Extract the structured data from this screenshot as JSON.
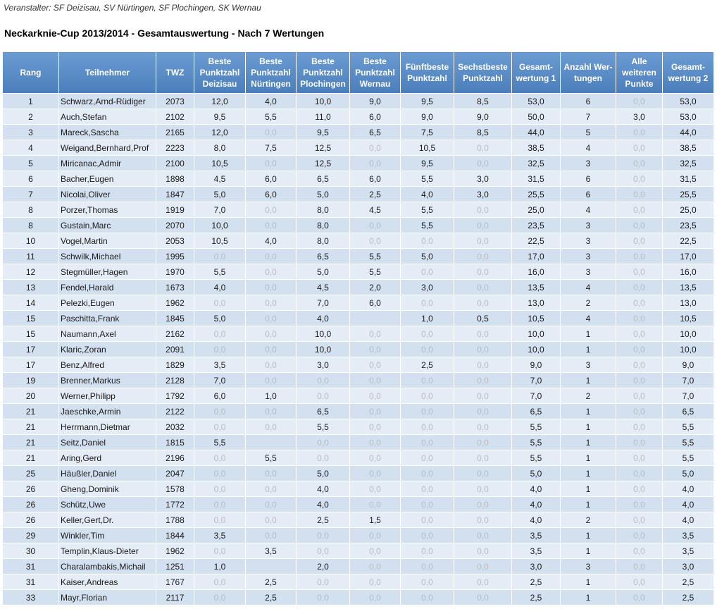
{
  "header": {
    "organizer": "Veranstalter: SF Deizisau, SV Nürtingen, SF Plochingen, SK Wernau",
    "title": "Neckarknie-Cup 2013/2014 - Gesamtauswertung - Nach 7 Wertungen"
  },
  "table": {
    "columns": [
      "Rang",
      "Teilnehmer",
      "TWZ",
      "Beste\nPunktzahl\nDeizisau",
      "Beste\nPunktzahl\nNürtingen",
      "Beste\nPunktzahl\nPlochingen",
      "Beste\nPunktzahl\nWernau",
      "Fünftbeste\nPunktzahl",
      "Sechstbeste\nPunktzahl",
      "Gesamt-\nwertung 1",
      "Anzahl Wer-\ntungen",
      "Alle\nweiteren\nPunkte",
      "Gesamt-\nwertung 2"
    ],
    "rows": [
      [
        "1",
        "Schwarz,Arnd-Rüdiger",
        "2073",
        "12,0",
        "4,0",
        "10,0",
        "9,0",
        "9,5",
        "8,5",
        "53,0",
        "6",
        "0,0",
        "53,0"
      ],
      [
        "2",
        "Auch,Stefan",
        "2102",
        "9,5",
        "5,5",
        "11,0",
        "6,0",
        "9,0",
        "9,0",
        "50,0",
        "7",
        "3,0",
        "53,0"
      ],
      [
        "3",
        "Mareck,Sascha",
        "2165",
        "12,0",
        "0,0",
        "9,5",
        "6,5",
        "7,5",
        "8,5",
        "44,0",
        "5",
        "0,0",
        "44,0"
      ],
      [
        "4",
        "Weigand,Bernhard,Prof",
        "2223",
        "8,0",
        "7,5",
        "12,5",
        "0,0",
        "10,5",
        "0,0",
        "38,5",
        "4",
        "0,0",
        "38,5"
      ],
      [
        "5",
        "Miricanac,Admir",
        "2100",
        "10,5",
        "0,0",
        "12,5",
        "0,0",
        "9,5",
        "0,0",
        "32,5",
        "3",
        "0,0",
        "32,5"
      ],
      [
        "6",
        "Bacher,Eugen",
        "1898",
        "4,5",
        "6,0",
        "6,5",
        "6,0",
        "5,5",
        "3,0",
        "31,5",
        "6",
        "0,0",
        "31,5"
      ],
      [
        "7",
        "Nicolai,Oliver",
        "1847",
        "5,0",
        "6,0",
        "5,0",
        "2,5",
        "4,0",
        "3,0",
        "25,5",
        "6",
        "0,0",
        "25,5"
      ],
      [
        "8",
        "Porzer,Thomas",
        "1919",
        "7,0",
        "0,0",
        "8,0",
        "4,5",
        "5,5",
        "0,0",
        "25,0",
        "4",
        "0,0",
        "25,0"
      ],
      [
        "8",
        "Gustain,Marc",
        "2070",
        "10,0",
        "0,0",
        "8,0",
        "0,0",
        "5,5",
        "0,0",
        "23,5",
        "3",
        "0,0",
        "23,5"
      ],
      [
        "10",
        "Vogel,Martin",
        "2053",
        "10,5",
        "4,0",
        "8,0",
        "0,0",
        "0,0",
        "0,0",
        "22,5",
        "3",
        "0,0",
        "22,5"
      ],
      [
        "11",
        "Schwilk,Michael",
        "1995",
        "0,0",
        "0,0",
        "6,5",
        "5,5",
        "5,0",
        "0,0",
        "17,0",
        "3",
        "0,0",
        "17,0"
      ],
      [
        "12",
        "Stegmüller,Hagen",
        "1970",
        "5,5",
        "0,0",
        "5,0",
        "5,5",
        "0,0",
        "0,0",
        "16,0",
        "3",
        "0,0",
        "16,0"
      ],
      [
        "13",
        "Fendel,Harald",
        "1673",
        "4,0",
        "0,0",
        "4,5",
        "2,0",
        "3,0",
        "0,0",
        "13,5",
        "4",
        "0,0",
        "13,5"
      ],
      [
        "14",
        "Pelezki,Eugen",
        "1962",
        "0,0",
        "0,0",
        "7,0",
        "6,0",
        "0,0",
        "0,0",
        "13,0",
        "2",
        "0,0",
        "13,0"
      ],
      [
        "15",
        "Paschitta,Frank",
        "1845",
        "5,0",
        "0,0",
        "4,0",
        null,
        "1,0",
        "0,5",
        "10,5",
        "4",
        "0,0",
        "10,5"
      ],
      [
        "15",
        "Naumann,Axel",
        "2162",
        "0,0",
        "0,0",
        "10,0",
        "0,0",
        "0,0",
        "0,0",
        "10,0",
        "1",
        "0,0",
        "10,0"
      ],
      [
        "17",
        "Klaric,Zoran",
        "2091",
        "0,0",
        "0,0",
        "10,0",
        "0,0",
        "0,0",
        "0,0",
        "10,0",
        "1",
        "0,0",
        "10,0"
      ],
      [
        "17",
        "Benz,Alfred",
        "1829",
        "3,5",
        "0,0",
        "3,0",
        "0,0",
        "2,5",
        "0,0",
        "9,0",
        "3",
        "0,0",
        "9,0"
      ],
      [
        "19",
        "Brenner,Markus",
        "2128",
        "7,0",
        "0,0",
        "0,0",
        "0,0",
        "0,0",
        "0,0",
        "7,0",
        "1",
        "0,0",
        "7,0"
      ],
      [
        "20",
        "Werner,Philipp",
        "1792",
        "6,0",
        "1,0",
        "0,0",
        "0,0",
        "0,0",
        "0,0",
        "7,0",
        "2",
        "0,0",
        "7,0"
      ],
      [
        "21",
        "Jaeschke,Armin",
        "2122",
        "0,0",
        "0,0",
        "6,5",
        "0,0",
        "0,0",
        "0,0",
        "6,5",
        "1",
        "0,0",
        "6,5"
      ],
      [
        "21",
        "Herrmann,Dietmar",
        "2032",
        "0,0",
        "0,0",
        "5,5",
        "0,0",
        "0,0",
        "0,0",
        "5,5",
        "1",
        "0,0",
        "5,5"
      ],
      [
        "21",
        "Seitz,Daniel",
        "1815",
        "5,5",
        null,
        "0,0",
        "0,0",
        "0,0",
        "0,0",
        "5,5",
        "1",
        "0,0",
        "5,5"
      ],
      [
        "21",
        "Aring,Gerd",
        "2196",
        "0,0",
        "5,5",
        "0,0",
        "0,0",
        "0,0",
        "0,0",
        "5,5",
        "1",
        "0,0",
        "5,5"
      ],
      [
        "25",
        "Häußler,Daniel",
        "2047",
        "0,0",
        "0,0",
        "5,0",
        "0,0",
        "0,0",
        "0,0",
        "5,0",
        "1",
        "0,0",
        "5,0"
      ],
      [
        "26",
        "Gheng,Dominik",
        "1578",
        "0,0",
        "0,0",
        "4,0",
        "0,0",
        "0,0",
        "0,0",
        "4,0",
        "1",
        "0,0",
        "4,0"
      ],
      [
        "26",
        "Schütz,Uwe",
        "1772",
        "0,0",
        "0,0",
        "4,0",
        "0,0",
        "0,0",
        "0,0",
        "4,0",
        "1",
        "0,0",
        "4,0"
      ],
      [
        "26",
        "Keller,Gert,Dr.",
        "1788",
        "0,0",
        "0,0",
        "2,5",
        "1,5",
        "0,0",
        "0,0",
        "4,0",
        "2",
        "0,0",
        "4,0"
      ],
      [
        "29",
        "Winkler,Tim",
        "1844",
        "3,5",
        "0,0",
        "0,0",
        "0,0",
        "0,0",
        "0,0",
        "3,5",
        "1",
        "0,0",
        "3,5"
      ],
      [
        "30",
        "Templin,Klaus-Dieter",
        "1962",
        "0,0",
        "3,5",
        "0,0",
        "0,0",
        "0,0",
        "0,0",
        "3,5",
        "1",
        "0,0",
        "3,5"
      ],
      [
        "31",
        "Charalambakis,Michail",
        "1251",
        "1,0",
        null,
        "2,0",
        "0,0",
        "0,0",
        "0,0",
        "3,0",
        "3",
        "0,0",
        "3,0"
      ],
      [
        "31",
        "Kaiser,Andreas",
        "1767",
        "0,0",
        "2,5",
        "0,0",
        "0,0",
        "0,0",
        "0,0",
        "2,5",
        "1",
        "0,0",
        "2,5"
      ],
      [
        "33",
        "Mayr,Florian",
        "2117",
        "0,0",
        "2,5",
        "0,0",
        "0,0",
        "0,0",
        "0,0",
        "2,5",
        "1",
        "0,0",
        "2,5"
      ]
    ]
  }
}
